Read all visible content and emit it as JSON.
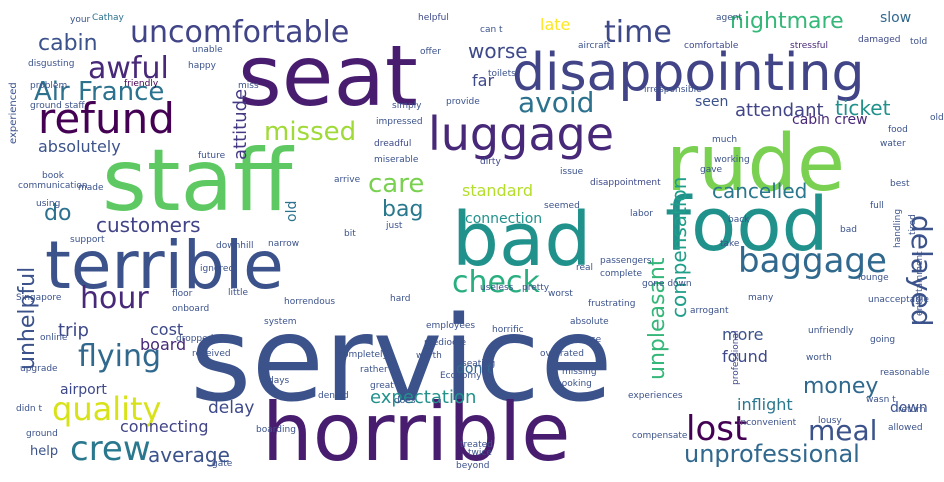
{
  "colors": {
    "background": "#ffffff",
    "palette": [
      "#3b528b",
      "#481d6f",
      "#21918c",
      "#5ec962",
      "#b5de2b",
      "#2c728e",
      "#fde725"
    ]
  },
  "words": [
    {
      "text": "service",
      "color": "#3b528b"
    },
    {
      "text": "horrible",
      "color": "#481d6f"
    },
    {
      "text": "seat",
      "color": "#481d6f"
    },
    {
      "text": "rude",
      "color": "#7ad151"
    },
    {
      "text": "staff",
      "color": "#5ec962"
    },
    {
      "text": "food",
      "color": "#21918c"
    },
    {
      "text": "bad",
      "color": "#21918c"
    },
    {
      "text": "terrible",
      "color": "#3b528b"
    },
    {
      "text": "disappointing",
      "color": "#414487"
    },
    {
      "text": "luggage",
      "color": "#482878"
    },
    {
      "text": "uncomfortable",
      "color": "#414487"
    },
    {
      "text": "refund",
      "color": "#440154"
    },
    {
      "text": "awful",
      "color": "#482878"
    },
    {
      "text": "Air France",
      "color": "#2c728e"
    },
    {
      "text": "cabin",
      "color": "#3b528b"
    },
    {
      "text": "time",
      "color": "#3e4989"
    },
    {
      "text": "worse",
      "color": "#3e4989"
    },
    {
      "text": "nightmare",
      "color": "#35b779"
    },
    {
      "text": "avoid",
      "color": "#2c728e"
    },
    {
      "text": "missed",
      "color": "#a0da39"
    },
    {
      "text": "baggage",
      "color": "#31688e"
    },
    {
      "text": "delayed",
      "color": "#3b528b"
    },
    {
      "text": "check",
      "color": "#29af7f"
    },
    {
      "text": "hour",
      "color": "#482878"
    },
    {
      "text": "flying",
      "color": "#31688e"
    },
    {
      "text": "quality",
      "color": "#d8e219"
    },
    {
      "text": "crew",
      "color": "#2a788e"
    },
    {
      "text": "lost",
      "color": "#440154"
    },
    {
      "text": "meal",
      "color": "#3b528b"
    },
    {
      "text": "unprofessional",
      "color": "#31688e"
    },
    {
      "text": "average",
      "color": "#3b528b"
    },
    {
      "text": "unhelpful",
      "color": "#3b528b"
    },
    {
      "text": "customers",
      "color": "#414487"
    },
    {
      "text": "do",
      "color": "#2c728e"
    },
    {
      "text": "absolutely",
      "color": "#3b528b"
    },
    {
      "text": "care",
      "color": "#7ad151"
    },
    {
      "text": "bag",
      "color": "#2a788e"
    },
    {
      "text": "standard",
      "color": "#b5de2b"
    },
    {
      "text": "cancelled",
      "color": "#2a788e"
    },
    {
      "text": "compensation",
      "color": "#1f9e89"
    },
    {
      "text": "unpleasant",
      "color": "#35b779"
    },
    {
      "text": "ticket",
      "color": "#21918c"
    },
    {
      "text": "attendant",
      "color": "#414487"
    },
    {
      "text": "money",
      "color": "#31688e"
    },
    {
      "text": "attitude",
      "color": "#443983"
    },
    {
      "text": "trip",
      "color": "#3e4989"
    },
    {
      "text": "board",
      "color": "#482878"
    },
    {
      "text": "cost",
      "color": "#3e4989"
    },
    {
      "text": "delay",
      "color": "#3e4989"
    },
    {
      "text": "expectation",
      "color": "#21918c"
    },
    {
      "text": "connecting",
      "color": "#414487"
    },
    {
      "text": "inflight",
      "color": "#2a788e"
    },
    {
      "text": "found",
      "color": "#3e4989"
    },
    {
      "text": "more",
      "color": "#3b528b"
    },
    {
      "text": "cabin crew",
      "color": "#482878"
    },
    {
      "text": "seen",
      "color": "#3b528b"
    },
    {
      "text": "far",
      "color": "#3e4989"
    },
    {
      "text": "late",
      "color": "#fde725"
    },
    {
      "text": "slow",
      "color": "#31688e"
    },
    {
      "text": "airport",
      "color": "#3e4989"
    },
    {
      "text": "help",
      "color": "#3b528b"
    },
    {
      "text": "down",
      "color": "#3b528b"
    },
    {
      "text": "don t",
      "color": "#31688e"
    },
    {
      "text": "connection",
      "color": "#21918c"
    },
    {
      "text": "old",
      "color": "#2c728e"
    },
    {
      "text": "experienced",
      "color": "#3b528b"
    },
    {
      "text": "ground staff",
      "color": "#3b528b"
    },
    {
      "text": "Cathay",
      "color": "#2c728e"
    },
    {
      "text": "helpful",
      "color": "#3e4989"
    },
    {
      "text": "agent",
      "color": "#3b528b"
    },
    {
      "text": "aircraft",
      "color": "#3b528b"
    },
    {
      "text": "comfortable",
      "color": "#3e4989"
    },
    {
      "text": "stressful",
      "color": "#482878"
    },
    {
      "text": "damaged",
      "color": "#3e4989"
    },
    {
      "text": "told",
      "color": "#3b528b"
    },
    {
      "text": "disgusting",
      "color": "#3b528b"
    },
    {
      "text": "friendly",
      "color": "#440154"
    },
    {
      "text": "irresponsible",
      "color": "#3b528b"
    },
    {
      "text": "communication",
      "color": "#3b528b"
    },
    {
      "text": "impressed",
      "color": "#3b528b"
    },
    {
      "text": "dreadful",
      "color": "#3e4989"
    },
    {
      "text": "dirty",
      "color": "#3e4989"
    },
    {
      "text": "issue",
      "color": "#3b528b"
    },
    {
      "text": "disappointment",
      "color": "#3e4989"
    },
    {
      "text": "frustrating",
      "color": "#3b528b"
    },
    {
      "text": "horrific",
      "color": "#3b528b"
    },
    {
      "text": "arrogant",
      "color": "#3b528b"
    },
    {
      "text": "absolute",
      "color": "#3b528b"
    },
    {
      "text": "professional",
      "color": "#3e4989"
    },
    {
      "text": "unfriendly",
      "color": "#3b528b"
    },
    {
      "text": "reasonable",
      "color": "#3b528b"
    },
    {
      "text": "return",
      "color": "#3b528b"
    },
    {
      "text": "allowed",
      "color": "#3b528b"
    },
    {
      "text": "boarding",
      "color": "#3b528b"
    },
    {
      "text": "worth",
      "color": "#3b528b"
    },
    {
      "text": "mediocre",
      "color": "#3b528b"
    },
    {
      "text": "Economy",
      "color": "#3b528b"
    },
    {
      "text": "booking",
      "color": "#3b528b"
    },
    {
      "text": "missing",
      "color": "#3b528b"
    },
    {
      "text": "suitcase",
      "color": "#3b528b"
    },
    {
      "text": "overrated",
      "color": "#3b528b"
    },
    {
      "text": "seating",
      "color": "#3b528b"
    },
    {
      "text": "employees",
      "color": "#3b528b"
    },
    {
      "text": "completely",
      "color": "#3b528b"
    },
    {
      "text": "rather",
      "color": "#3b528b"
    },
    {
      "text": "received",
      "color": "#3b528b"
    },
    {
      "text": "dropped",
      "color": "#3b528b"
    },
    {
      "text": "online",
      "color": "#3b528b"
    },
    {
      "text": "upgrade",
      "color": "#3b528b"
    },
    {
      "text": "ground",
      "color": "#3b528b"
    },
    {
      "text": "didn t",
      "color": "#3b528b"
    },
    {
      "text": "Singapore",
      "color": "#3b528b"
    },
    {
      "text": "onboard",
      "color": "#3b528b"
    },
    {
      "text": "floor",
      "color": "#3b528b"
    },
    {
      "text": "little",
      "color": "#3b528b"
    },
    {
      "text": "ignored",
      "color": "#3b528b"
    },
    {
      "text": "system",
      "color": "#3b528b"
    },
    {
      "text": "horrendous",
      "color": "#3b528b"
    },
    {
      "text": "days",
      "color": "#3b528b"
    },
    {
      "text": "denied",
      "color": "#3b528b"
    },
    {
      "text": "great",
      "color": "#3b528b"
    },
    {
      "text": "does",
      "color": "#3b528b"
    },
    {
      "text": "gate",
      "color": "#3b528b"
    },
    {
      "text": "beyond",
      "color": "#3b528b"
    },
    {
      "text": "treated",
      "color": "#3b528b"
    },
    {
      "text": "twice",
      "color": "#3b528b"
    },
    {
      "text": "compensate",
      "color": "#3b528b"
    },
    {
      "text": "experiences",
      "color": "#3b528b"
    },
    {
      "text": "inconvenient",
      "color": "#3b528b"
    },
    {
      "text": "lousy",
      "color": "#3b528b"
    },
    {
      "text": "wasn t",
      "color": "#3b528b"
    },
    {
      "text": "useless",
      "color": "#3b528b"
    },
    {
      "text": "passengers",
      "color": "#3b528b"
    },
    {
      "text": "complete",
      "color": "#3b528b"
    },
    {
      "text": "real",
      "color": "#3b528b"
    },
    {
      "text": "gone down",
      "color": "#3b528b"
    },
    {
      "text": "worst",
      "color": "#3b528b"
    },
    {
      "text": "pretty",
      "color": "#3b528b"
    },
    {
      "text": "hard",
      "color": "#3b528b"
    },
    {
      "text": "support",
      "color": "#3b528b"
    },
    {
      "text": "made",
      "color": "#3b528b"
    },
    {
      "text": "book",
      "color": "#3b528b"
    },
    {
      "text": "using",
      "color": "#3b528b"
    },
    {
      "text": "future",
      "color": "#3b528b"
    },
    {
      "text": "simply",
      "color": "#3b528b"
    },
    {
      "text": "miserable",
      "color": "#3b528b"
    },
    {
      "text": "arrive",
      "color": "#3b528b"
    },
    {
      "text": "bit",
      "color": "#3b528b"
    },
    {
      "text": "just",
      "color": "#3b528b"
    },
    {
      "text": "narrow",
      "color": "#3b528b"
    },
    {
      "text": "downhill",
      "color": "#3b528b"
    },
    {
      "text": "seemed",
      "color": "#3b528b"
    },
    {
      "text": "labor",
      "color": "#3b528b"
    },
    {
      "text": "provide",
      "color": "#3b528b"
    },
    {
      "text": "toilets",
      "color": "#3b528b"
    },
    {
      "text": "offer",
      "color": "#3b528b"
    },
    {
      "text": "can t",
      "color": "#3b528b"
    },
    {
      "text": "miss",
      "color": "#3b528b"
    },
    {
      "text": "happy",
      "color": "#3b528b"
    },
    {
      "text": "unable",
      "color": "#3b528b"
    },
    {
      "text": "problem",
      "color": "#3b528b"
    },
    {
      "text": "your",
      "color": "#3b528b"
    },
    {
      "text": "handling",
      "color": "#3b528b"
    },
    {
      "text": "tired",
      "color": "#3b528b"
    },
    {
      "text": "lounge",
      "color": "#3b528b"
    },
    {
      "text": "entertainment",
      "color": "#3b528b"
    },
    {
      "text": "unacceptable",
      "color": "#3b528b"
    },
    {
      "text": "water",
      "color": "#3b528b"
    },
    {
      "text": "food",
      "color": "#3b528b"
    },
    {
      "text": "best",
      "color": "#3b528b"
    },
    {
      "text": "going",
      "color": "#3b528b"
    },
    {
      "text": "working",
      "color": "#3b528b"
    },
    {
      "text": "much",
      "color": "#3b528b"
    },
    {
      "text": "gave",
      "color": "#3b528b"
    },
    {
      "text": "many",
      "color": "#3b528b"
    },
    {
      "text": "worth",
      "color": "#3b528b"
    },
    {
      "text": "bad",
      "color": "#3b528b"
    },
    {
      "text": "full",
      "color": "#3b528b"
    },
    {
      "text": "back",
      "color": "#3b528b"
    },
    {
      "text": "take",
      "color": "#3b528b"
    },
    {
      "text": "old",
      "color": "#3b528b"
    }
  ]
}
